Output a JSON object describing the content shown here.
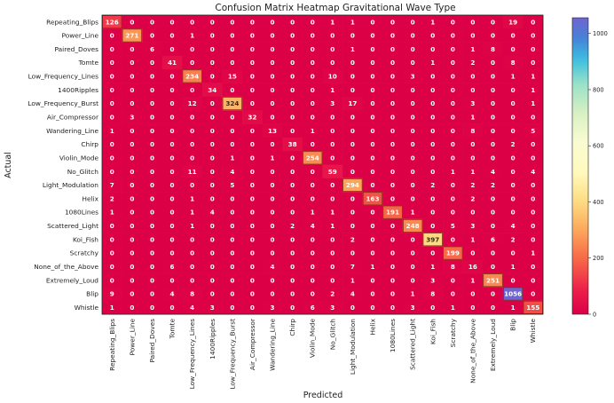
{
  "chart_data": {
    "type": "heatmap",
    "title": "Confusion Matrix Heatmap Gravitational Wave Type",
    "xlabel": "Predicted",
    "ylabel": "Actual",
    "colormap": "Spectral",
    "colorbar": {
      "range": [
        0,
        1056
      ],
      "ticks": [
        0,
        200,
        400,
        600,
        800,
        1000
      ]
    },
    "labels": [
      "Repeating_Blips",
      "Power_Line",
      "Paired_Doves",
      "Tomte",
      "Low_Frequency_Lines",
      "1400Ripples",
      "Low_Frequency_Burst",
      "Air_Compressor",
      "Wandering_Line",
      "Chirp",
      "Violin_Mode",
      "No_Glitch",
      "Light_Modulation",
      "Helix",
      "1080Lines",
      "Scattered_Light",
      "Koi_Fish",
      "Scratchy",
      "None_of_the_Above",
      "Extremely_Loud",
      "Blip",
      "Whistle"
    ],
    "matrix": [
      [
        126,
        0,
        0,
        0,
        0,
        0,
        0,
        0,
        0,
        0,
        0,
        1,
        1,
        0,
        0,
        0,
        1,
        0,
        0,
        0,
        19,
        0
      ],
      [
        0,
        271,
        0,
        0,
        1,
        0,
        0,
        0,
        0,
        0,
        0,
        0,
        0,
        0,
        0,
        0,
        0,
        0,
        0,
        0,
        0,
        0
      ],
      [
        0,
        0,
        6,
        0,
        0,
        0,
        0,
        0,
        0,
        0,
        0,
        0,
        1,
        0,
        0,
        0,
        0,
        0,
        1,
        8,
        0,
        0
      ],
      [
        0,
        0,
        0,
        41,
        0,
        0,
        0,
        0,
        0,
        0,
        0,
        0,
        0,
        0,
        0,
        0,
        1,
        0,
        2,
        0,
        8,
        0
      ],
      [
        0,
        0,
        0,
        0,
        234,
        0,
        15,
        0,
        0,
        0,
        0,
        10,
        0,
        0,
        0,
        3,
        0,
        0,
        0,
        0,
        1,
        1
      ],
      [
        0,
        0,
        0,
        0,
        0,
        34,
        0,
        0,
        0,
        0,
        0,
        1,
        0,
        0,
        0,
        0,
        0,
        0,
        0,
        0,
        0,
        1
      ],
      [
        0,
        0,
        0,
        0,
        12,
        0,
        324,
        0,
        0,
        0,
        0,
        3,
        17,
        0,
        0,
        0,
        0,
        0,
        3,
        0,
        0,
        1
      ],
      [
        0,
        3,
        0,
        0,
        0,
        0,
        0,
        32,
        0,
        0,
        0,
        0,
        0,
        0,
        0,
        0,
        0,
        0,
        1,
        0,
        0,
        0
      ],
      [
        1,
        0,
        0,
        0,
        0,
        0,
        0,
        0,
        13,
        0,
        1,
        0,
        0,
        0,
        0,
        0,
        0,
        0,
        8,
        0,
        0,
        5
      ],
      [
        0,
        0,
        0,
        0,
        0,
        0,
        0,
        0,
        0,
        38,
        0,
        0,
        0,
        0,
        0,
        0,
        0,
        0,
        0,
        0,
        2,
        0
      ],
      [
        0,
        0,
        0,
        0,
        0,
        0,
        1,
        0,
        1,
        0,
        254,
        0,
        0,
        0,
        0,
        0,
        0,
        0,
        0,
        0,
        0,
        0
      ],
      [
        0,
        0,
        0,
        0,
        11,
        0,
        4,
        0,
        0,
        0,
        0,
        59,
        0,
        0,
        0,
        0,
        0,
        1,
        1,
        4,
        0,
        4
      ],
      [
        7,
        0,
        0,
        0,
        0,
        0,
        5,
        0,
        0,
        0,
        0,
        0,
        294,
        0,
        0,
        0,
        2,
        0,
        2,
        2,
        0,
        0
      ],
      [
        2,
        0,
        0,
        0,
        1,
        0,
        0,
        0,
        0,
        0,
        0,
        0,
        0,
        163,
        0,
        0,
        0,
        0,
        2,
        0,
        0,
        0
      ],
      [
        1,
        0,
        0,
        0,
        1,
        4,
        0,
        0,
        0,
        0,
        1,
        1,
        0,
        0,
        191,
        1,
        0,
        0,
        0,
        0,
        0,
        0
      ],
      [
        0,
        0,
        0,
        0,
        1,
        0,
        0,
        0,
        0,
        2,
        4,
        1,
        0,
        0,
        0,
        248,
        0,
        5,
        3,
        0,
        4,
        0
      ],
      [
        0,
        0,
        0,
        0,
        0,
        0,
        0,
        0,
        0,
        0,
        0,
        0,
        2,
        0,
        0,
        0,
        397,
        0,
        1,
        6,
        2,
        0
      ],
      [
        0,
        0,
        0,
        0,
        0,
        0,
        0,
        0,
        0,
        0,
        0,
        0,
        0,
        0,
        0,
        0,
        0,
        199,
        0,
        0,
        0,
        1
      ],
      [
        0,
        0,
        0,
        6,
        0,
        0,
        0,
        0,
        4,
        0,
        0,
        0,
        7,
        1,
        0,
        0,
        1,
        8,
        16,
        0,
        1,
        0
      ],
      [
        0,
        0,
        0,
        0,
        0,
        0,
        0,
        0,
        0,
        0,
        0,
        0,
        1,
        0,
        0,
        0,
        3,
        0,
        1,
        251,
        0,
        0
      ],
      [
        9,
        0,
        0,
        4,
        8,
        0,
        0,
        0,
        0,
        0,
        0,
        2,
        4,
        0,
        0,
        1,
        8,
        0,
        0,
        0,
        1056,
        0
      ],
      [
        1,
        0,
        0,
        0,
        4,
        3,
        0,
        0,
        3,
        0,
        6,
        3,
        0,
        0,
        0,
        3,
        0,
        1,
        0,
        0,
        1,
        155
      ]
    ]
  }
}
